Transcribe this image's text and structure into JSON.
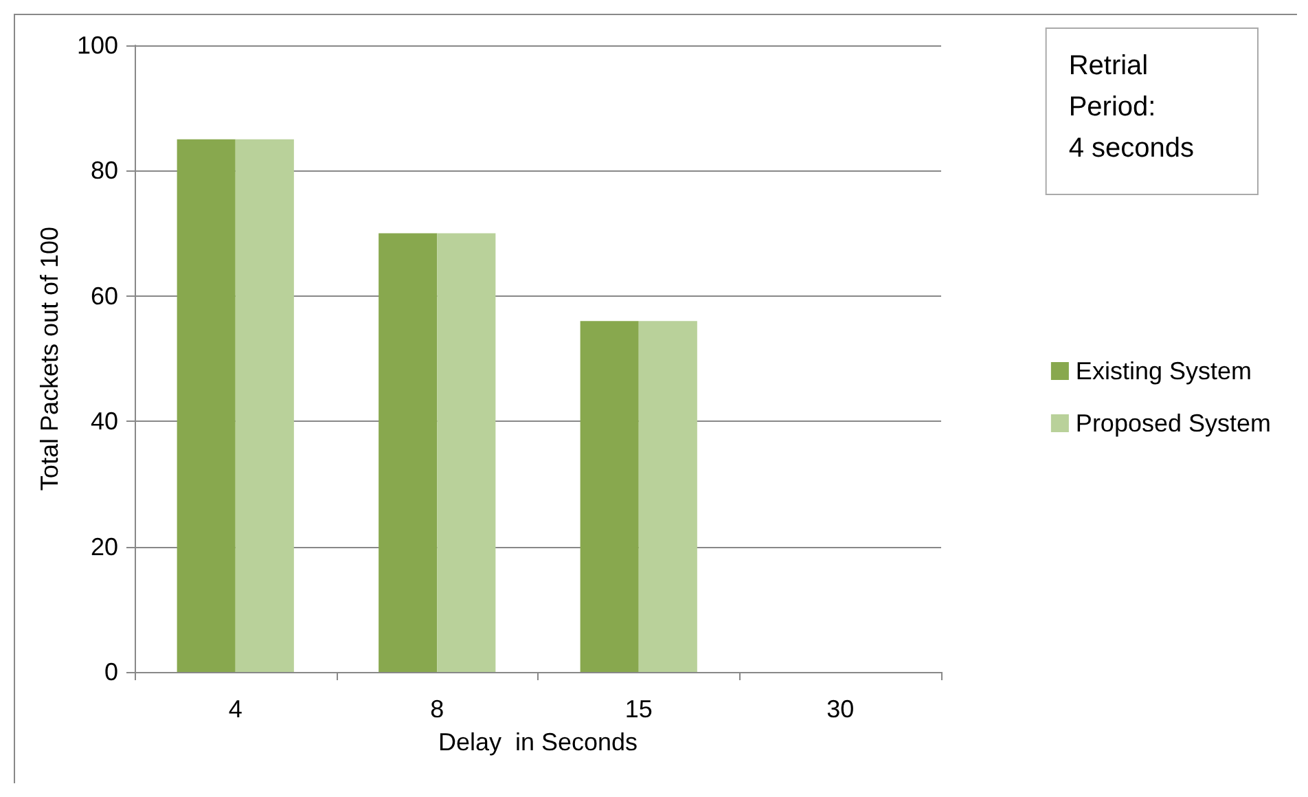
{
  "chart_data": {
    "type": "bar",
    "xlabel": "Delay  in Seconds",
    "ylabel": "Total Packets out of 100",
    "categories": [
      "4",
      "8",
      "15",
      "30"
    ],
    "series": [
      {
        "name": "Existing System",
        "color": "#88a84e",
        "values": [
          85,
          70,
          56,
          0
        ]
      },
      {
        "name": "Proposed System",
        "color": "#b9d19a",
        "values": [
          85,
          70,
          56,
          0
        ]
      }
    ],
    "ylim": [
      0,
      100
    ],
    "yticks": [
      0,
      20,
      40,
      60,
      80,
      100
    ],
    "grid": "y",
    "legend": "right",
    "annotations": [
      "Retrial\nPeriod:\n4 seconds"
    ]
  }
}
